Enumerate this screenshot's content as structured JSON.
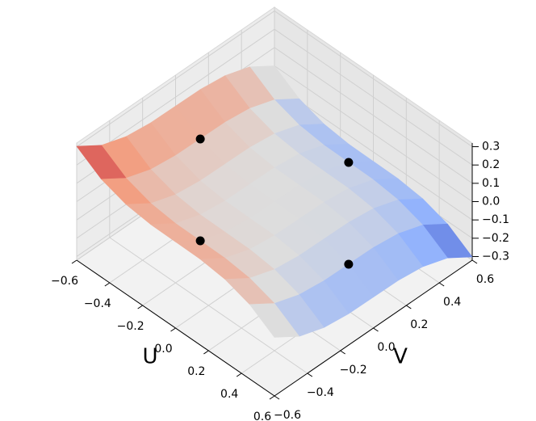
{
  "chart_data": {
    "type": "surface3d",
    "x_label": "U",
    "y_label": "V",
    "colormap": "coolwarm",
    "x": [
      -0.6,
      -0.45,
      -0.3,
      -0.15,
      0,
      0.15,
      0.3,
      0.45,
      0.6
    ],
    "y": [
      -0.6,
      -0.45,
      -0.3,
      -0.15,
      0,
      0.15,
      0.3,
      0.45,
      0.6
    ],
    "z": [
      [
        0.302,
        0.215,
        0.17,
        0.153,
        0.151,
        0.149,
        0.132,
        0.087,
        0
      ],
      [
        0.215,
        0.128,
        0.083,
        0.066,
        0.064,
        0.062,
        0.045,
        0,
        -0.087
      ],
      [
        0.17,
        0.083,
        0.038,
        0.021,
        0.019,
        0.017,
        0,
        -0.045,
        -0.132
      ],
      [
        0.153,
        0.066,
        0.021,
        0.004,
        0.002,
        0,
        -0.017,
        -0.062,
        -0.149
      ],
      [
        0.151,
        0.064,
        0.019,
        0.002,
        0,
        -0.002,
        -0.019,
        -0.064,
        -0.151
      ],
      [
        0.149,
        0.062,
        0.017,
        0,
        -0.002,
        -0.004,
        -0.021,
        -0.066,
        -0.153
      ],
      [
        0.132,
        0.045,
        0,
        -0.017,
        -0.019,
        -0.021,
        -0.038,
        -0.083,
        -0.17
      ],
      [
        0.087,
        0,
        -0.045,
        -0.062,
        -0.064,
        -0.066,
        -0.083,
        -0.128,
        -0.215
      ],
      [
        0,
        -0.087,
        -0.132,
        -0.149,
        -0.151,
        -0.153,
        -0.17,
        -0.215,
        -0.302
      ]
    ],
    "points": {
      "color": "#000000",
      "x": [
        0,
        -0.45,
        0,
        0.45
      ],
      "y": [
        -0.45,
        0,
        0.45,
        0
      ],
      "z": [
        0.064,
        0.064,
        -0.064,
        -0.064
      ]
    },
    "xlim": [
      -0.6,
      0.6
    ],
    "ylim": [
      -0.6,
      0.6
    ],
    "zlim": [
      -0.32,
      0.32
    ],
    "xticks": [
      {
        "value": -0.6,
        "label": "−0.6"
      },
      {
        "value": -0.4,
        "label": "−0.4"
      },
      {
        "value": -0.2,
        "label": "−0.2"
      },
      {
        "value": 0,
        "label": "0.0"
      },
      0.2,
      0.4,
      0.6
    ],
    "yticks": [
      {
        "value": -0.6,
        "label": "−0.6"
      },
      {
        "value": -0.4,
        "label": "−0.4"
      },
      {
        "value": -0.2,
        "label": "−0.2"
      },
      {
        "value": 0,
        "label": "0.0"
      },
      0.2,
      0.4,
      0.6
    ],
    "zticks": [
      {
        "value": -0.3,
        "label": "−0.3"
      },
      {
        "value": -0.2,
        "label": "−0.2"
      },
      {
        "value": -0.1,
        "label": "−0.1"
      },
      {
        "value": 0,
        "label": "0.0"
      },
      0.1,
      0.2,
      0.3
    ]
  }
}
